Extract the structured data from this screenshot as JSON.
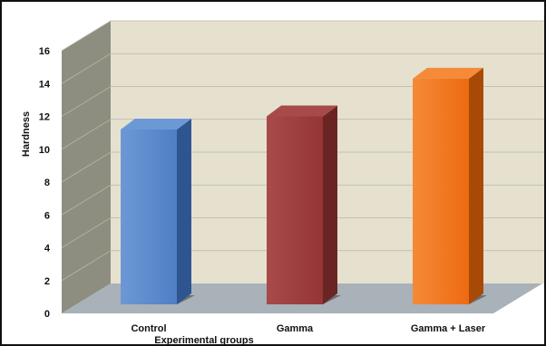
{
  "chart_data": {
    "type": "bar",
    "title": "",
    "xlabel": "Experimental groups",
    "ylabel": "Hardness",
    "categories": [
      "Control",
      "Gamma",
      "Gamma + Laser"
    ],
    "values": [
      11.2,
      12.0,
      14.3
    ],
    "ylim": [
      0,
      16
    ],
    "yticks": [
      0,
      2,
      4,
      6,
      8,
      10,
      12,
      14,
      16
    ],
    "grid": true,
    "legend": "none",
    "bar_colors": [
      {
        "front": "#4f7fc4",
        "side": "#2f5590",
        "top": "#6c98d6"
      },
      {
        "front": "#953535",
        "side": "#6a2424",
        "top": "#a94a4a"
      },
      {
        "front": "#ee6a10",
        "side": "#a84a05",
        "top": "#f58a38"
      }
    ],
    "wall_color": "#e6e1ce",
    "side_wall_color": "#8e8e80",
    "floor_color": "#a9b1b9"
  }
}
